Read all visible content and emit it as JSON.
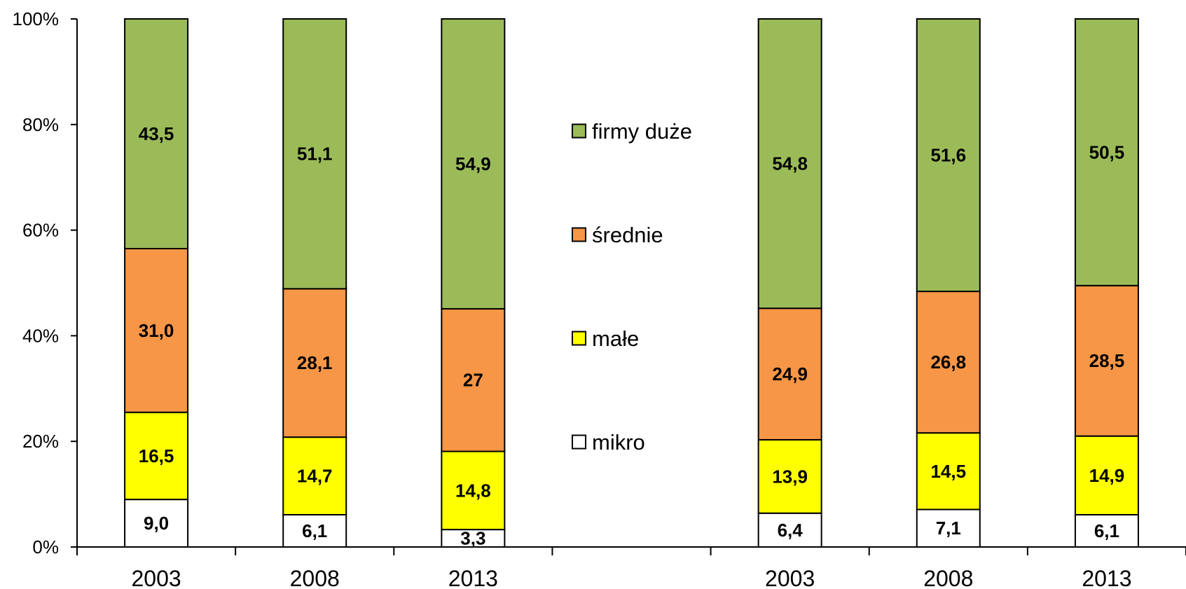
{
  "chart_data": {
    "type": "bar",
    "stacked": true,
    "percent_stacked": true,
    "categories": [
      "2003",
      "2008",
      "2013",
      "",
      "2003",
      "2008",
      "2013"
    ],
    "series": [
      {
        "name": "mikro",
        "color": "#ffffff",
        "values": [
          9.0,
          6.1,
          3.3,
          null,
          6.4,
          7.1,
          6.1
        ],
        "labels": [
          "9,0",
          "6,1",
          "3,3",
          "",
          "6,4",
          "7,1",
          "6,1"
        ]
      },
      {
        "name": "małe",
        "color": "#ffff00",
        "values": [
          16.5,
          14.7,
          14.8,
          null,
          13.9,
          14.5,
          14.9
        ],
        "labels": [
          "16,5",
          "14,7",
          "14,8",
          "",
          "13,9",
          "14,5",
          "14,9"
        ]
      },
      {
        "name": "średnie",
        "color": "#f79646",
        "values": [
          31.0,
          28.1,
          27,
          null,
          24.9,
          26.8,
          28.5
        ],
        "labels": [
          "31,0",
          "28,1",
          "27",
          "",
          "24,9",
          "26,8",
          "28,5"
        ]
      },
      {
        "name": "firmy duże",
        "color": "#9bbb59",
        "values": [
          43.5,
          51.1,
          54.9,
          null,
          54.8,
          51.6,
          50.5
        ],
        "labels": [
          "43,5",
          "51,1",
          "54,9",
          "",
          "54,8",
          "51,6",
          "50,5"
        ]
      }
    ],
    "y_ticks": [
      "0%",
      "20%",
      "40%",
      "60%",
      "80%",
      "100%"
    ],
    "ylim": [
      0,
      100
    ],
    "grid": false,
    "legend": {
      "placement": "center",
      "order": [
        "firmy duże",
        "średnie",
        "małe",
        "mikro"
      ]
    }
  }
}
